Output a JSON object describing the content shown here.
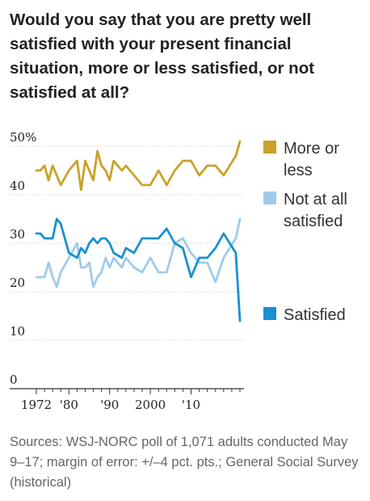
{
  "question": "Would you say that you are pretty well satisfied with your present financial situation, more or less satisfied, or not satisfied at all?",
  "source": "Sources: WSJ-NORC poll of 1,071 adults conducted May 9–17; margin of error: +/–4 pct. pts.; General Social Survey (historical)",
  "chart_data": {
    "type": "line",
    "title": "Would you say that you are pretty well satisfied with your present financial situation, more or less satisfied, or not satisfied at all?",
    "x_range": [
      1972,
      2023
    ],
    "ylim": [
      0,
      50
    ],
    "yticks": [
      0,
      10,
      20,
      30,
      40,
      50
    ],
    "ytick_labels": [
      "0",
      "10",
      "20",
      "30",
      "40",
      "50%"
    ],
    "xtick_labels": [
      "1972",
      "'80",
      "'90",
      "2000",
      "'10"
    ],
    "xtick_values": [
      1972,
      1980,
      1990,
      2000,
      2010
    ],
    "grid": "horizontal",
    "legend_placement": "right, beside series ends",
    "series": [
      {
        "name": "More or less",
        "legend_lines": [
          "More or",
          "less"
        ],
        "color": "#c9a227",
        "points": [
          [
            1972,
            45
          ],
          [
            1973,
            45
          ],
          [
            1974,
            46
          ],
          [
            1975,
            43
          ],
          [
            1976,
            46
          ],
          [
            1977,
            44
          ],
          [
            1978,
            42
          ],
          [
            1980,
            45
          ],
          [
            1982,
            47
          ],
          [
            1983,
            41
          ],
          [
            1984,
            47
          ],
          [
            1985,
            45
          ],
          [
            1986,
            43
          ],
          [
            1987,
            49
          ],
          [
            1988,
            46
          ],
          [
            1989,
            45
          ],
          [
            1990,
            43
          ],
          [
            1991,
            47
          ],
          [
            1993,
            45
          ],
          [
            1994,
            46
          ],
          [
            1996,
            44
          ],
          [
            1998,
            42
          ],
          [
            2000,
            42
          ],
          [
            2002,
            45
          ],
          [
            2004,
            42
          ],
          [
            2006,
            45
          ],
          [
            2008,
            47
          ],
          [
            2010,
            47
          ],
          [
            2012,
            44
          ],
          [
            2014,
            46
          ],
          [
            2016,
            46
          ],
          [
            2018,
            44
          ],
          [
            2021,
            48
          ],
          [
            2022,
            51
          ]
        ]
      },
      {
        "name": "Not at all satisfied",
        "legend_lines": [
          "Not at all",
          "satisfied"
        ],
        "color": "#9fcbea",
        "points": [
          [
            1972,
            23
          ],
          [
            1973,
            23
          ],
          [
            1974,
            23
          ],
          [
            1975,
            26
          ],
          [
            1976,
            23
          ],
          [
            1977,
            21
          ],
          [
            1978,
            24
          ],
          [
            1980,
            27
          ],
          [
            1982,
            30
          ],
          [
            1983,
            25
          ],
          [
            1984,
            25
          ],
          [
            1985,
            26
          ],
          [
            1986,
            21
          ],
          [
            1987,
            23
          ],
          [
            1988,
            24
          ],
          [
            1989,
            27
          ],
          [
            1990,
            25
          ],
          [
            1991,
            27
          ],
          [
            1993,
            25
          ],
          [
            1994,
            27
          ],
          [
            1996,
            25
          ],
          [
            1998,
            24
          ],
          [
            2000,
            27
          ],
          [
            2002,
            24
          ],
          [
            2004,
            24
          ],
          [
            2006,
            30
          ],
          [
            2008,
            31
          ],
          [
            2010,
            28
          ],
          [
            2012,
            26
          ],
          [
            2014,
            26
          ],
          [
            2016,
            22
          ],
          [
            2018,
            27
          ],
          [
            2021,
            31
          ],
          [
            2022,
            35
          ]
        ]
      },
      {
        "name": "Satisfied",
        "legend_lines": [
          "Satisfied"
        ],
        "color": "#1a90d0",
        "points": [
          [
            1972,
            32
          ],
          [
            1973,
            32
          ],
          [
            1974,
            31
          ],
          [
            1975,
            31
          ],
          [
            1976,
            31
          ],
          [
            1977,
            35
          ],
          [
            1978,
            34
          ],
          [
            1980,
            28
          ],
          [
            1982,
            27
          ],
          [
            1983,
            29
          ],
          [
            1984,
            28
          ],
          [
            1985,
            30
          ],
          [
            1986,
            31
          ],
          [
            1987,
            30
          ],
          [
            1988,
            31
          ],
          [
            1989,
            31
          ],
          [
            1990,
            30
          ],
          [
            1991,
            28
          ],
          [
            1993,
            27
          ],
          [
            1994,
            29
          ],
          [
            1996,
            28
          ],
          [
            1998,
            31
          ],
          [
            2000,
            31
          ],
          [
            2002,
            31
          ],
          [
            2004,
            33
          ],
          [
            2006,
            30
          ],
          [
            2008,
            29
          ],
          [
            2010,
            23
          ],
          [
            2012,
            27
          ],
          [
            2014,
            27
          ],
          [
            2016,
            29
          ],
          [
            2018,
            32
          ],
          [
            2021,
            28
          ],
          [
            2022,
            14
          ]
        ]
      }
    ]
  }
}
